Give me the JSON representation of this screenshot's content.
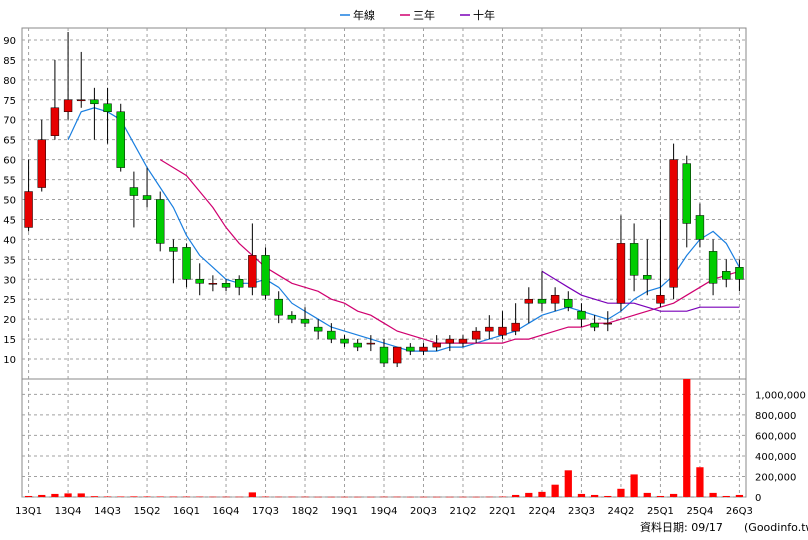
{
  "chart_data": {
    "type": "candlestick",
    "legend": [
      {
        "name": "年線",
        "color": "#1a7fe0"
      },
      {
        "name": "三年",
        "color": "#d0006f"
      },
      {
        "name": "十年",
        "color": "#7a00b8"
      }
    ],
    "price_axis": {
      "ticks": [
        10,
        15,
        20,
        25,
        30,
        35,
        40,
        45,
        50,
        55,
        60,
        65,
        70,
        75,
        80,
        85,
        90
      ],
      "ylim": [
        5,
        93
      ]
    },
    "volume_axis": {
      "ticks": [
        "0",
        "200,000",
        "400,000",
        "600,000",
        "800,000",
        "1,000,000"
      ],
      "ylim": [
        0,
        1150000
      ]
    },
    "x_tick_labels": [
      "13Q1",
      "13Q4",
      "14Q3",
      "15Q2",
      "16Q1",
      "16Q4",
      "17Q3",
      "18Q2",
      "19Q1",
      "19Q4",
      "20Q3",
      "21Q2",
      "22Q1",
      "22Q4",
      "23Q3",
      "24Q2",
      "25Q1",
      "25Q4",
      "26Q3"
    ],
    "quarters": [
      "13Q1",
      "13Q2",
      "13Q3",
      "13Q4",
      "14Q1",
      "14Q2",
      "14Q3",
      "14Q4",
      "15Q1",
      "15Q2",
      "15Q3",
      "15Q4",
      "16Q1",
      "16Q2",
      "16Q3",
      "16Q4",
      "17Q1",
      "17Q2",
      "17Q3",
      "17Q4",
      "18Q1",
      "18Q2",
      "18Q3",
      "18Q4",
      "19Q1",
      "19Q2",
      "19Q3",
      "19Q4",
      "20Q1",
      "20Q2",
      "20Q3",
      "20Q4",
      "21Q1",
      "21Q2",
      "21Q3",
      "21Q4",
      "22Q1",
      "22Q2",
      "22Q3",
      "22Q4",
      "23Q1",
      "23Q2",
      "23Q3",
      "23Q4",
      "24Q1",
      "24Q2",
      "24Q3",
      "24Q4",
      "25Q1",
      "25Q2",
      "25Q3",
      "25Q4",
      "26Q1",
      "26Q2",
      "26Q3"
    ],
    "ohlc": [
      [
        43,
        60,
        42,
        52
      ],
      [
        53,
        70,
        52,
        65
      ],
      [
        66,
        85,
        65,
        73
      ],
      [
        72,
        92,
        70,
        75
      ],
      [
        75,
        87,
        73,
        75
      ],
      [
        75,
        78,
        65,
        74
      ],
      [
        74,
        78,
        64,
        72
      ],
      [
        72,
        74,
        57,
        58
      ],
      [
        53,
        57,
        43,
        51
      ],
      [
        51,
        58,
        48,
        50
      ],
      [
        50,
        52,
        37,
        39
      ],
      [
        38,
        40,
        29,
        37
      ],
      [
        38,
        39,
        28,
        30
      ],
      [
        30,
        34,
        26,
        29
      ],
      [
        29,
        31,
        27,
        29
      ],
      [
        29,
        30,
        27,
        28
      ],
      [
        30,
        31,
        26,
        28
      ],
      [
        28,
        44,
        26,
        36
      ],
      [
        36,
        38,
        25,
        26
      ],
      [
        25,
        27,
        19,
        21
      ],
      [
        21,
        22,
        19,
        20
      ],
      [
        20,
        23,
        18,
        19
      ],
      [
        18,
        20,
        15,
        17
      ],
      [
        17,
        19,
        14,
        15
      ],
      [
        15,
        16,
        13,
        14
      ],
      [
        14,
        15,
        12,
        13
      ],
      [
        14,
        16,
        12,
        14
      ],
      [
        13,
        15,
        8,
        9
      ],
      [
        9,
        13,
        8,
        13
      ],
      [
        13,
        14,
        11,
        12
      ],
      [
        12,
        14,
        11,
        13
      ],
      [
        13,
        16,
        12,
        14
      ],
      [
        14,
        16,
        12,
        15
      ],
      [
        14,
        16,
        13,
        15
      ],
      [
        15,
        18,
        14,
        17
      ],
      [
        17,
        21,
        15,
        18
      ],
      [
        16,
        22,
        15,
        18
      ],
      [
        17,
        24,
        16,
        19
      ],
      [
        24,
        28,
        19,
        25
      ],
      [
        25,
        32,
        22,
        24
      ],
      [
        24,
        28,
        22,
        26
      ],
      [
        25,
        27,
        22,
        23
      ],
      [
        22,
        24,
        18,
        20
      ],
      [
        19,
        21,
        17,
        18
      ],
      [
        19,
        22,
        17,
        19
      ],
      [
        24,
        46,
        22,
        39
      ],
      [
        39,
        44,
        27,
        31
      ],
      [
        31,
        40,
        26,
        30
      ],
      [
        24,
        45,
        23,
        26
      ],
      [
        28,
        64,
        25,
        60
      ],
      [
        59,
        61,
        38,
        44
      ],
      [
        46,
        49,
        38,
        40
      ],
      [
        37,
        40,
        26,
        29
      ],
      [
        32,
        35,
        28,
        30
      ],
      [
        33,
        35,
        27,
        30
      ]
    ],
    "volume": [
      10000,
      20000,
      30000,
      35000,
      35000,
      8000,
      5000,
      5000,
      6000,
      5000,
      5000,
      4000,
      4000,
      4000,
      3000,
      3000,
      3000,
      45000,
      4000,
      3000,
      3000,
      3000,
      2000,
      2000,
      2000,
      2000,
      2000,
      3000,
      3000,
      2000,
      2000,
      2000,
      2000,
      2000,
      2000,
      3000,
      4000,
      20000,
      40000,
      50000,
      120000,
      260000,
      30000,
      20000,
      10000,
      80000,
      220000,
      40000,
      10000,
      30000,
      1250000,
      290000,
      40000,
      10000,
      20000
    ],
    "ma_year": [
      null,
      null,
      null,
      65,
      72,
      73,
      72,
      70,
      64,
      58,
      53,
      48,
      41,
      36,
      33,
      30,
      29,
      29,
      30,
      28,
      24,
      22,
      20,
      18,
      17,
      16,
      15,
      14,
      13,
      12,
      12,
      12,
      13,
      13,
      14,
      15,
      16,
      17,
      19,
      21,
      22,
      23,
      22,
      21,
      20,
      22,
      25,
      27,
      28,
      31,
      36,
      40,
      42,
      39,
      33
    ],
    "ma_3y": [
      null,
      null,
      null,
      null,
      null,
      null,
      null,
      null,
      null,
      null,
      60,
      58,
      56,
      52,
      48,
      43,
      39,
      36,
      33,
      31,
      29,
      28,
      27,
      25,
      24,
      22,
      21,
      19,
      17,
      16,
      15,
      14,
      14,
      14,
      14,
      14,
      14,
      15,
      15,
      16,
      17,
      18,
      18,
      19,
      19,
      20,
      21,
      22,
      23,
      24,
      26,
      28,
      30,
      31,
      32
    ],
    "ma_10y": [
      null,
      null,
      null,
      null,
      null,
      null,
      null,
      null,
      null,
      null,
      null,
      null,
      null,
      null,
      null,
      null,
      null,
      null,
      null,
      null,
      null,
      null,
      null,
      null,
      null,
      null,
      null,
      null,
      null,
      null,
      null,
      null,
      null,
      null,
      null,
      null,
      null,
      null,
      null,
      32,
      30,
      28,
      26,
      25,
      24,
      24,
      24,
      23,
      22,
      22,
      22,
      23,
      23,
      23,
      23
    ],
    "colors": {
      "up": "#e60000",
      "down": "#00cc00",
      "volume": "#ff0000",
      "grid": "#a0a0a0"
    }
  },
  "footer": {
    "date_label": "資料日期: 09/17",
    "source": "(Goodinfo.tw)"
  }
}
